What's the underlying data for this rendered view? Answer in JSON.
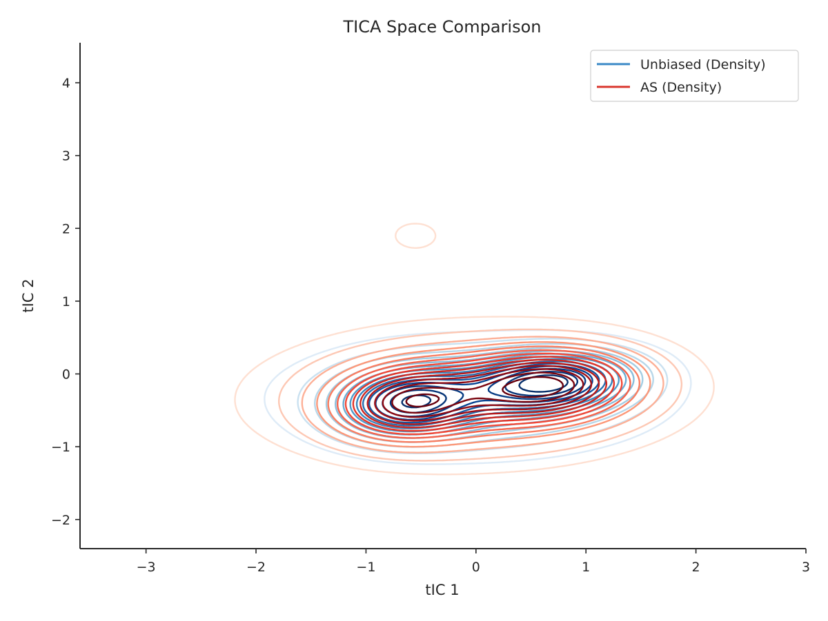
{
  "chart_data": {
    "type": "contour",
    "title": "TICA Space Comparison",
    "xlabel": "tIC 1",
    "ylabel": "tIC 2",
    "xlim": [
      -3.6,
      3.0
    ],
    "ylim": [
      -2.4,
      4.55
    ],
    "xticks": [
      -3,
      -2,
      -1,
      0,
      1,
      2,
      3
    ],
    "yticks": [
      -2,
      -1,
      0,
      1,
      2,
      3,
      4
    ],
    "xtick_labels": [
      "−3",
      "−2",
      "−1",
      "0",
      "1",
      "2",
      "3"
    ],
    "ytick_labels": [
      "−2",
      "−1",
      "0",
      "1",
      "2",
      "3",
      "4"
    ],
    "grid": false,
    "legend_position": "top-right",
    "series": [
      {
        "name": "Unbiased (Density)",
        "color": "#3a88c6",
        "colormap": "Blues",
        "levels": 14,
        "components": [
          {
            "weight": 1.0,
            "mean": [
              0.7,
              -0.1
            ],
            "sd": [
              0.48,
              0.27
            ],
            "rho": 0.15
          },
          {
            "weight": 0.85,
            "mean": [
              -0.62,
              -0.4
            ],
            "sd": [
              0.4,
              0.3
            ],
            "rho": 0.1
          },
          {
            "weight": 0.5,
            "mean": [
              -0.05,
              -0.33
            ],
            "sd": [
              1.0,
              0.48
            ],
            "rho": 0.0
          },
          {
            "weight": 0.09,
            "mean": [
              -0.52,
              1.98
            ],
            "sd": [
              0.3,
              0.26
            ],
            "rho": 0.0
          }
        ]
      },
      {
        "name": "AS (Density)",
        "color": "#d9362d",
        "colormap": "Reds",
        "levels": 14,
        "components": [
          {
            "weight": 0.95,
            "mean": [
              0.65,
              -0.15
            ],
            "sd": [
              0.52,
              0.32
            ],
            "rho": 0.12
          },
          {
            "weight": 0.8,
            "mean": [
              -0.62,
              -0.4
            ],
            "sd": [
              0.42,
              0.32
            ],
            "rho": 0.1
          },
          {
            "weight": 0.6,
            "mean": [
              -0.05,
              -0.3
            ],
            "sd": [
              1.12,
              0.56
            ],
            "rho": 0.05
          },
          {
            "weight": 0.11,
            "mean": [
              -0.55,
              1.9
            ],
            "sd": [
              0.36,
              0.33
            ],
            "rho": 0.0
          }
        ]
      }
    ]
  }
}
